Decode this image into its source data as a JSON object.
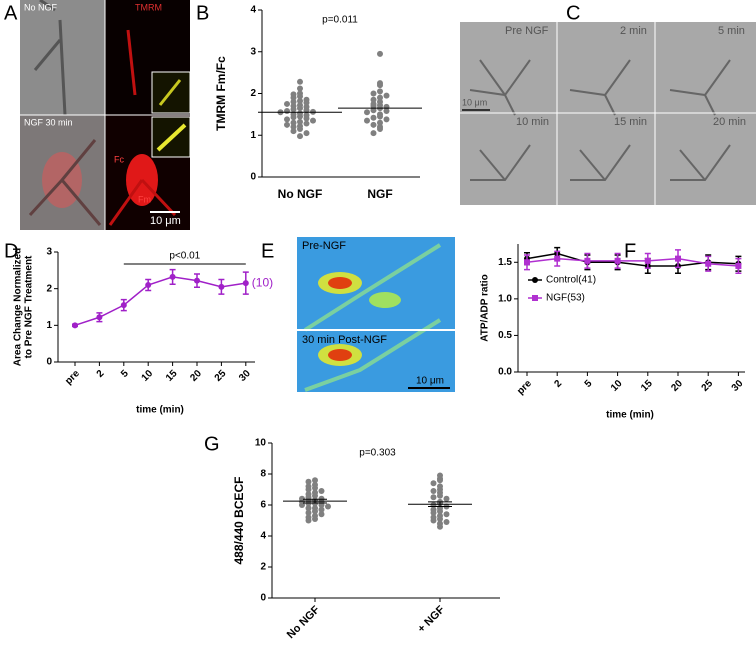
{
  "panel_A": {
    "letter": "A",
    "top_left": "No NGF",
    "top_right": "TMRM",
    "bottom_left": "NGF 30 min",
    "fc": "Fc",
    "fm": "Fm",
    "scale": "10 μm"
  },
  "panel_C": {
    "letter": "C",
    "frames": [
      "Pre NGF",
      "2 min",
      "5 min",
      "10 min",
      "15 min",
      "20 min"
    ],
    "scale": "10 μm"
  },
  "panel_E": {
    "letter": "E",
    "top": "Pre-NGF",
    "bottom": "30 min Post-NGF",
    "scale": "10 μm"
  },
  "chart_data": [
    {
      "type": "dot",
      "panel": "B",
      "annotation": "p=0.011",
      "ylabel": "TMRM Fm/Fc",
      "categories": [
        "No NGF",
        "NGF"
      ],
      "color": "#808080",
      "groups": [
        [
          2.28,
          2.12,
          2.0,
          1.98,
          1.93,
          1.9,
          1.85,
          1.82,
          1.8,
          1.78,
          1.75,
          1.72,
          1.7,
          1.68,
          1.65,
          1.62,
          1.6,
          1.58,
          1.56,
          1.55,
          1.52,
          1.5,
          1.48,
          1.45,
          1.43,
          1.4,
          1.38,
          1.35,
          1.32,
          1.3,
          1.28,
          1.25,
          1.22,
          1.2,
          1.15,
          1.1,
          1.05,
          0.98
        ],
        [
          2.95,
          2.25,
          2.2,
          2.05,
          2.0,
          1.95,
          1.9,
          1.85,
          1.8,
          1.75,
          1.72,
          1.7,
          1.68,
          1.65,
          1.6,
          1.58,
          1.55,
          1.5,
          1.45,
          1.42,
          1.38,
          1.35,
          1.3,
          1.25,
          1.2,
          1.15,
          1.05
        ]
      ],
      "means": [
        1.55,
        1.65
      ],
      "ylim": [
        0,
        4
      ],
      "yticks": [
        0,
        1,
        2,
        3,
        4
      ]
    },
    {
      "type": "line",
      "panel": "D",
      "annotation": "p<0.01",
      "n_label": "(10)",
      "ylabel": [
        "Area Change Normalized",
        "to Pre NGF Treatment"
      ],
      "xlabel": "time (min)",
      "categories": [
        "pre",
        "2",
        "5",
        "10",
        "15",
        "20",
        "25",
        "30"
      ],
      "color": "#a020c8",
      "marker": "circle",
      "values": [
        1.0,
        1.22,
        1.55,
        2.1,
        2.32,
        2.22,
        2.05,
        2.15
      ],
      "errors": [
        0.03,
        0.12,
        0.15,
        0.15,
        0.2,
        0.18,
        0.2,
        0.3
      ],
      "ylim": [
        0,
        3
      ],
      "yticks": [
        0,
        1,
        2,
        3
      ]
    },
    {
      "type": "line",
      "panel": "F",
      "ylabel": "ATP/ADP ratio",
      "xlabel": "time (min)",
      "categories": [
        "pre",
        "2",
        "5",
        "10",
        "15",
        "20",
        "25",
        "30"
      ],
      "series": [
        {
          "name": "Control(41)",
          "color": "#000000",
          "marker": "circle",
          "values": [
            1.55,
            1.62,
            1.5,
            1.5,
            1.45,
            1.45,
            1.5,
            1.48
          ],
          "errors": [
            0.08,
            0.08,
            0.1,
            0.1,
            0.1,
            0.1,
            0.1,
            0.1
          ]
        },
        {
          "name": "NGF(53)",
          "color": "#b030d0",
          "marker": "square",
          "values": [
            1.5,
            1.55,
            1.52,
            1.52,
            1.52,
            1.55,
            1.48,
            1.45
          ],
          "errors": [
            0.1,
            0.1,
            0.1,
            0.1,
            0.1,
            0.12,
            0.1,
            0.1
          ]
        }
      ],
      "legend": "upper-left",
      "ylim": [
        0,
        1.75
      ],
      "yticks": [
        {
          "value": 0,
          "label": "0.0"
        },
        {
          "value": 0.5,
          "label": "0.5"
        },
        {
          "value": 1,
          "label": "1.0"
        },
        {
          "value": 1.5,
          "label": "1.5"
        }
      ]
    },
    {
      "type": "dot",
      "panel": "G",
      "annotation": "p=0.303",
      "ylabel": "488/440 BCECF",
      "categories": [
        "No NGF",
        "+ NGF"
      ],
      "color": "#808080",
      "groups": [
        [
          7.6,
          7.5,
          7.3,
          7.2,
          7.1,
          7.0,
          6.9,
          6.8,
          6.7,
          6.6,
          6.5,
          6.4,
          6.4,
          6.3,
          6.3,
          6.2,
          6.2,
          6.1,
          6.1,
          6.0,
          6.0,
          5.9,
          5.8,
          5.8,
          5.7,
          5.6,
          5.5,
          5.4,
          5.3,
          5.2,
          5.1,
          5.0
        ],
        [
          7.9,
          7.7,
          7.6,
          7.4,
          7.2,
          7.0,
          6.9,
          6.8,
          6.6,
          6.5,
          6.4,
          6.2,
          6.1,
          6.0,
          5.9,
          5.8,
          5.7,
          5.6,
          5.5,
          5.4,
          5.3,
          5.2,
          5.1,
          5.0,
          4.9,
          4.8,
          4.6
        ]
      ],
      "means": [
        6.25,
        6.05
      ],
      "sems": [
        0.12,
        0.15
      ],
      "ylim": [
        0,
        10
      ],
      "yticks": [
        0,
        2,
        4,
        6,
        8,
        10
      ]
    }
  ]
}
